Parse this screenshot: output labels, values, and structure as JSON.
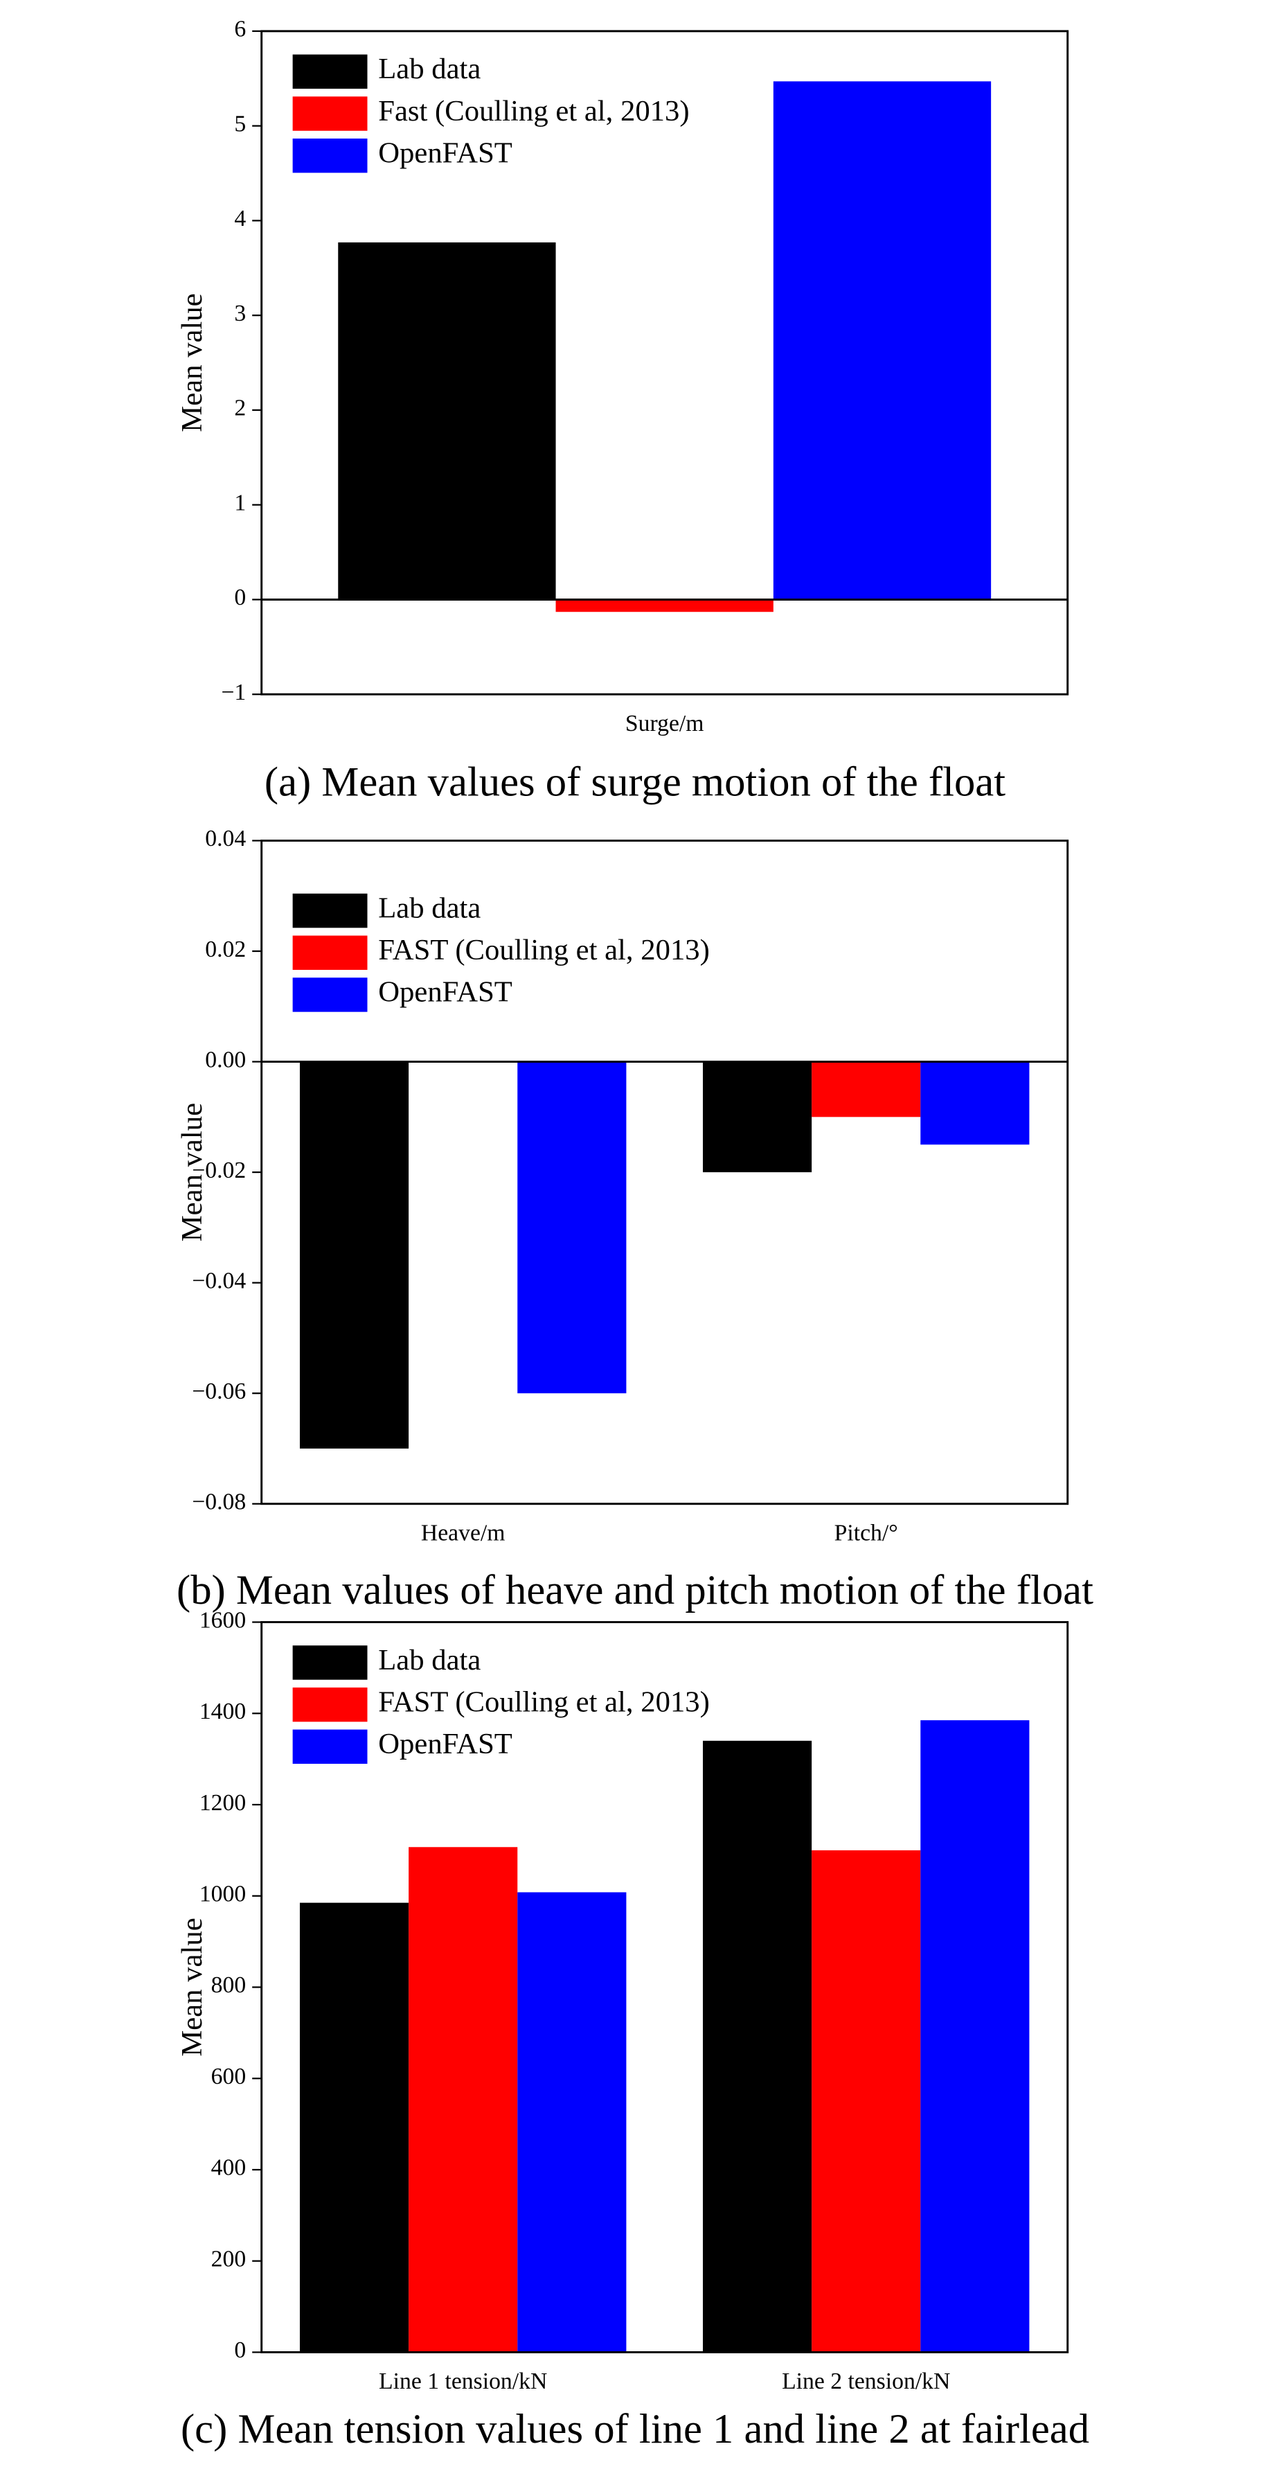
{
  "chart_data": [
    {
      "type": "bar",
      "ylabel": "Mean value",
      "categories": [
        "Surge/m"
      ],
      "series": [
        {
          "name": "Lab data",
          "color": "#000000",
          "values": [
            3.77
          ]
        },
        {
          "name": "Fast (Coulling et al, 2013)",
          "color": "#ff0000",
          "values": [
            -0.13
          ]
        },
        {
          "name": "OpenFAST",
          "color": "#0000ff",
          "values": [
            5.47
          ]
        }
      ],
      "ylim": [
        -1,
        6
      ],
      "yticks": [
        {
          "value": -1,
          "label": "−1"
        },
        0,
        1,
        2,
        3,
        4,
        5,
        6
      ],
      "legend": "upper-left",
      "caption": "(a) Mean values of surge motion of the float"
    },
    {
      "type": "bar",
      "ylabel": "Mean value",
      "categories": [
        "Heave/m",
        "Pitch/°"
      ],
      "series": [
        {
          "name": "Lab data",
          "color": "#000000",
          "values": [
            -0.07,
            -0.02
          ]
        },
        {
          "name": "FAST (Coulling et al, 2013)",
          "color": "#ff0000",
          "values": [
            0,
            -0.01
          ]
        },
        {
          "name": "OpenFAST",
          "color": "#0000ff",
          "values": [
            -0.06,
            -0.015
          ]
        }
      ],
      "ylim": [
        -0.08,
        0.04
      ],
      "yticks": [
        {
          "value": -0.08,
          "label": "−0.08"
        },
        {
          "value": -0.06,
          "label": "−0.06"
        },
        {
          "value": -0.04,
          "label": "−0.04"
        },
        {
          "value": -0.02,
          "label": "−0.02"
        },
        {
          "value": 0,
          "label": "0.00"
        },
        {
          "value": 0.02,
          "label": "0.02"
        },
        {
          "value": 0.04,
          "label": "0.04"
        }
      ],
      "legend": "upper-left",
      "caption": "(b) Mean values of heave and pitch motion of the float"
    },
    {
      "type": "bar",
      "ylabel": "Mean value",
      "categories": [
        "Line 1 tension/kN",
        "Line 2 tension/kN"
      ],
      "series": [
        {
          "name": "Lab data",
          "color": "#000000",
          "values": [
            985,
            1340
          ]
        },
        {
          "name": "FAST (Coulling et al, 2013)",
          "color": "#ff0000",
          "values": [
            1107,
            1100
          ]
        },
        {
          "name": "OpenFAST",
          "color": "#0000ff",
          "values": [
            1008,
            1385
          ]
        }
      ],
      "ylim": [
        0,
        1600
      ],
      "yticks": [
        0,
        200,
        400,
        600,
        800,
        1000,
        1200,
        1400,
        1600
      ],
      "legend": "upper-left",
      "caption": "(c) Mean tension values of line 1 and line 2 at fairlead"
    }
  ]
}
